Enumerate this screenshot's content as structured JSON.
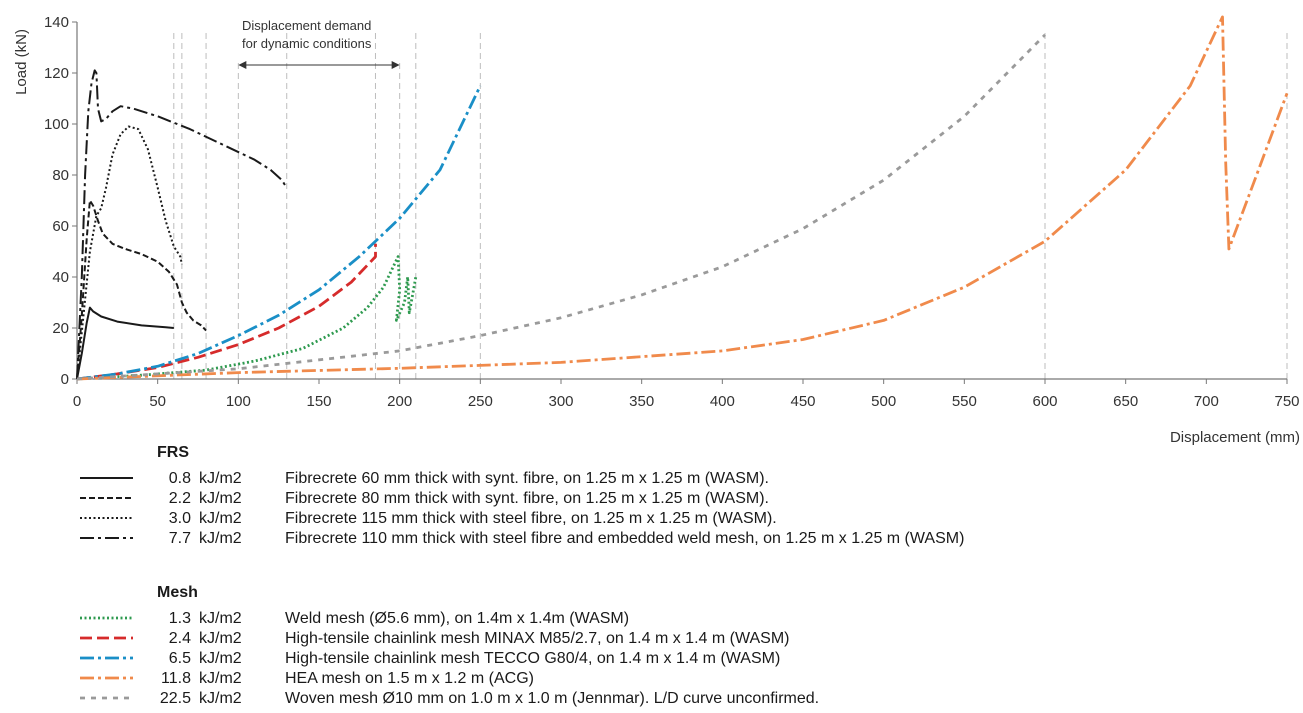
{
  "chart_data": {
    "type": "line",
    "xlabel": "Displacement (mm)",
    "ylabel": "Load (kN)",
    "xlim": [
      0,
      750
    ],
    "ylim": [
      0,
      140
    ],
    "x_ticks": [
      0,
      50,
      100,
      150,
      200,
      250,
      300,
      350,
      400,
      450,
      500,
      550,
      600,
      650,
      700,
      750
    ],
    "y_ticks": [
      0,
      20,
      40,
      60,
      80,
      100,
      120,
      140
    ],
    "grid": false,
    "legend_placement": "bottom",
    "annotation": {
      "lines": [
        "Displacement demand",
        "for dynamic conditions"
      ],
      "range": [
        100,
        200
      ]
    },
    "reference_lines_x": [
      60,
      65,
      80,
      100,
      130,
      185,
      200,
      210,
      250,
      600,
      750
    ],
    "groups": [
      {
        "label": "FRS",
        "series": [
          {
            "energy": "0.8",
            "unit": "kJ/m2",
            "name": "Fibrecrete 60 mm thick with synt. fibre, on 1.25 m x 1.25 m (WASM).",
            "style": "solid",
            "color": "#1a1a1a",
            "points": [
              [
                0,
                0
              ],
              [
                3,
                10
              ],
              [
                6,
                22
              ],
              [
                8,
                28
              ],
              [
                10,
                26.5
              ],
              [
                15,
                24.5
              ],
              [
                25,
                22.5
              ],
              [
                40,
                21
              ],
              [
                55,
                20.3
              ],
              [
                60,
                20
              ]
            ]
          },
          {
            "energy": "2.2",
            "unit": "kJ/m2",
            "name": "Fibrecrete 80 mm thick with synt. fibre, on 1.25 m x 1.25 m (WASM).",
            "style": "dashed",
            "color": "#1a1a1a",
            "points": [
              [
                0,
                0
              ],
              [
                3,
                25
              ],
              [
                6,
                55
              ],
              [
                8,
                70
              ],
              [
                10,
                68
              ],
              [
                13,
                62
              ],
              [
                16,
                57
              ],
              [
                22,
                53
              ],
              [
                30,
                51
              ],
              [
                40,
                49
              ],
              [
                50,
                46
              ],
              [
                57,
                42
              ],
              [
                62,
                37
              ],
              [
                65,
                30
              ],
              [
                68,
                26
              ],
              [
                72,
                23
              ],
              [
                77,
                21
              ],
              [
                80,
                19
              ]
            ]
          },
          {
            "energy": "3.0",
            "unit": "kJ/m2",
            "name": "Fibrecrete 115 mm thick with steel fibre,  on 1.25 m x 1.25 m (WASM).",
            "style": "dotted",
            "color": "#1a1a1a",
            "points": [
              [
                0,
                0
              ],
              [
                4,
                25
              ],
              [
                8,
                50
              ],
              [
                12,
                64
              ],
              [
                15,
                67
              ],
              [
                18,
                75
              ],
              [
                22,
                88
              ],
              [
                27,
                96
              ],
              [
                32,
                99
              ],
              [
                38,
                98
              ],
              [
                44,
                90
              ],
              [
                50,
                75
              ],
              [
                55,
                62
              ],
              [
                60,
                52
              ],
              [
                64,
                48
              ],
              [
                65,
                45
              ]
            ]
          },
          {
            "energy": "7.7",
            "unit": "kJ/m2",
            "name": "Fibrecrete 110 mm thick with steel fibre and embedded weld mesh, on 1.25 m x 1.25 m (WASM)",
            "style": "dashdot",
            "color": "#1a1a1a",
            "points": [
              [
                0,
                0
              ],
              [
                3,
                40
              ],
              [
                5,
                80
              ],
              [
                7,
                105
              ],
              [
                9,
                116
              ],
              [
                11,
                121
              ],
              [
                12,
                120
              ],
              [
                13,
                106
              ],
              [
                15,
                101
              ],
              [
                18,
                102
              ],
              [
                22,
                105
              ],
              [
                27,
                107
              ],
              [
                35,
                106
              ],
              [
                50,
                103
              ],
              [
                70,
                98
              ],
              [
                90,
                92
              ],
              [
                110,
                86
              ],
              [
                120,
                82
              ],
              [
                127,
                78
              ],
              [
                130,
                75
              ]
            ]
          }
        ]
      },
      {
        "label": "Mesh",
        "series": [
          {
            "energy": "1.3",
            "unit": "kJ/m2",
            "name": "Weld mesh (Ø5.6 mm), on 1.4m x 1.4m (WASM)",
            "style": "dotted",
            "color": "#2e9a4f",
            "points": [
              [
                0,
                0
              ],
              [
                40,
                1.5
              ],
              [
                80,
                3.5
              ],
              [
                110,
                7
              ],
              [
                140,
                12
              ],
              [
                165,
                20
              ],
              [
                180,
                28
              ],
              [
                190,
                36
              ],
              [
                196,
                44
              ],
              [
                199,
                48
              ],
              [
                200,
                35
              ],
              [
                198,
                23
              ],
              [
                203,
                30
              ],
              [
                205,
                40
              ],
              [
                206,
                26
              ],
              [
                208,
                33
              ],
              [
                210,
                40
              ]
            ]
          },
          {
            "energy": "2.4",
            "unit": "kJ/m2",
            "name": "High-tensile chainlink mesh MINAX M85/2.7, on 1.4 m x 1.4 m (WASM)",
            "style": "dashed-long",
            "color": "#d62b2b",
            "points": [
              [
                0,
                0
              ],
              [
                25,
                2
              ],
              [
                50,
                4.5
              ],
              [
                75,
                8.5
              ],
              [
                100,
                13.5
              ],
              [
                125,
                20
              ],
              [
                150,
                28.5
              ],
              [
                170,
                38
              ],
              [
                185,
                48
              ],
              [
                185,
                53
              ]
            ]
          },
          {
            "energy": "6.5",
            "unit": "kJ/m2",
            "name": "High-tensile chainlink mesh TECCO G80/4, on 1.4 m x 1.4 m (WASM)",
            "style": "dashdot",
            "color": "#1a8fc7",
            "points": [
              [
                0,
                0
              ],
              [
                25,
                2
              ],
              [
                50,
                5
              ],
              [
                75,
                10
              ],
              [
                100,
                17
              ],
              [
                125,
                25
              ],
              [
                150,
                35
              ],
              [
                175,
                48
              ],
              [
                200,
                63
              ],
              [
                225,
                82
              ],
              [
                250,
                115
              ]
            ]
          },
          {
            "energy": "11.8",
            "unit": "kJ/m2",
            "name": "HEA mesh on 1.5 m x 1.2 m (ACG)",
            "style": "dashdot",
            "color": "#f08a4b",
            "points": [
              [
                0,
                0
              ],
              [
                100,
                2.5
              ],
              [
                200,
                4.2
              ],
              [
                300,
                6.5
              ],
              [
                400,
                11
              ],
              [
                450,
                15.5
              ],
              [
                500,
                23
              ],
              [
                550,
                36
              ],
              [
                600,
                54
              ],
              [
                650,
                82
              ],
              [
                690,
                115
              ],
              [
                710,
                142
              ],
              [
                712,
                85
              ],
              [
                714,
                51
              ],
              [
                730,
                78
              ],
              [
                750,
                112
              ]
            ]
          },
          {
            "energy": "22.5",
            "unit": "kJ/m2",
            "name": "Woven mesh Ø10 mm on 1.0 m x 1.0 m (Jennmar). L/D curve unconfirmed.",
            "style": "dashed-short",
            "color": "#9a9a9a",
            "points": [
              [
                0,
                0
              ],
              [
                100,
                4
              ],
              [
                200,
                11
              ],
              [
                250,
                17
              ],
              [
                300,
                24
              ],
              [
                350,
                33
              ],
              [
                400,
                44
              ],
              [
                450,
                59
              ],
              [
                500,
                78
              ],
              [
                550,
                103
              ],
              [
                600,
                135
              ]
            ]
          }
        ]
      }
    ]
  }
}
